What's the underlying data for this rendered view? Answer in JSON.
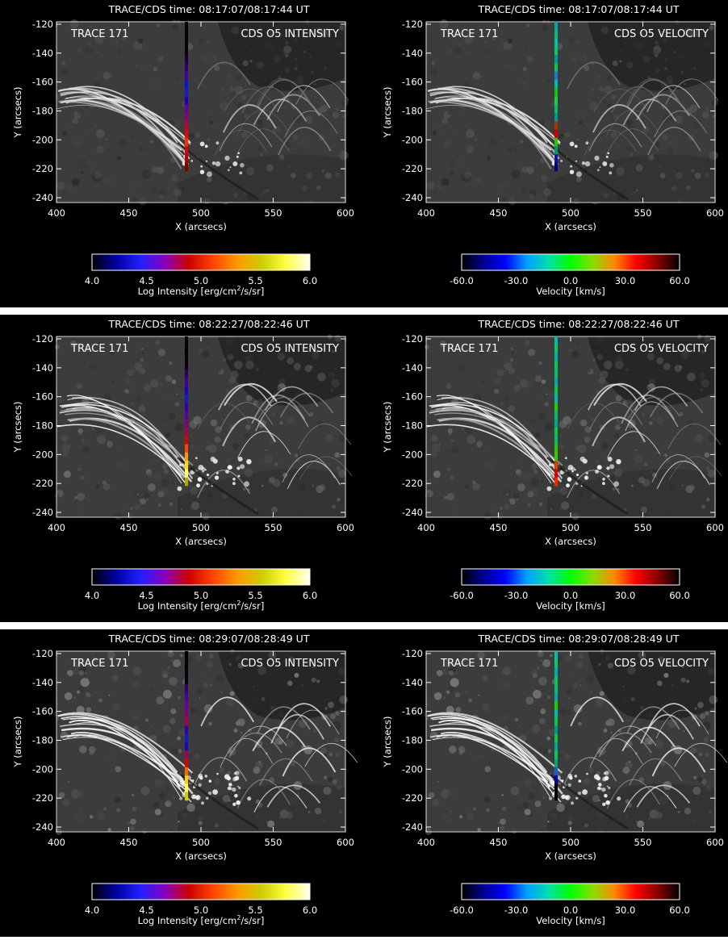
{
  "rows": [
    {
      "time_text": "TRACE/CDS time:  08:17:07/08:17:44 UT",
      "left_label": "TRACE 171",
      "right_labels": [
        "CDS O5 INTENSITY",
        "CDS O5 VELOCITY"
      ],
      "intensity_slit": [
        "#000000",
        "#000000",
        "#050505",
        "#0a0015",
        "#1a0040",
        "#300070",
        "#4400a0",
        "#1010d0",
        "#1a1acc",
        "#2000c0",
        "#6a00a0",
        "#900070",
        "#c00030",
        "#ee0000",
        "#ff2a00",
        "#dd0000",
        "#bb0000",
        "#800000"
      ],
      "velocity_slit": [
        "#00a8a8",
        "#00c070",
        "#00c0b0",
        "#00cc66",
        "#009999",
        "#00cc55",
        "#1a7acc",
        "#00bbaa",
        "#00cc00",
        "#22cc44",
        "#00c060",
        "#009999",
        "#aa3300",
        "#cc0000",
        "#22cc00",
        "#009966",
        "#1010aa",
        "#000080"
      ]
    },
    {
      "time_text": "TRACE/CDS time:  08:22:27/08:22:46 UT",
      "left_label": "TRACE 171",
      "right_labels": [
        "CDS O5 INTENSITY",
        "CDS O5 VELOCITY"
      ],
      "intensity_slit": [
        "#000000",
        "#000000",
        "#050505",
        "#0a0015",
        "#2a0060",
        "#4000a0",
        "#2000c0",
        "#1a1acc",
        "#3000b0",
        "#5a00a0",
        "#800080",
        "#aa0050",
        "#dd0000",
        "#ff4400",
        "#ff9900",
        "#ffdd00",
        "#ffff66",
        "#aaaa00"
      ],
      "velocity_slit": [
        "#00c0a0",
        "#00cc66",
        "#00b0b0",
        "#00cc55",
        "#00c070",
        "#00aaaa",
        "#00cc44",
        "#00bbaa",
        "#22cc00",
        "#00c060",
        "#00aa88",
        "#00cc44",
        "#00c060",
        "#22cc00",
        "#33cc00",
        "#cc4400",
        "#dd0000",
        "#ff2200"
      ]
    },
    {
      "time_text": "TRACE/CDS time:  08:29:07/08:28:49 UT",
      "left_label": "TRACE 171",
      "right_labels": [
        "CDS O5 INTENSITY",
        "CDS O5 VELOCITY"
      ],
      "intensity_slit": [
        "#000000",
        "#000000",
        "#050505",
        "#0a0015",
        "#300070",
        "#4a00a0",
        "#6a00a0",
        "#800080",
        "#aa0050",
        "#3000b0",
        "#1a1acc",
        "#2000c0",
        "#aa0050",
        "#dd0000",
        "#ff6600",
        "#ffcc00",
        "#ffff55",
        "#cccc00"
      ],
      "velocity_slit": [
        "#00c0a0",
        "#00cc66",
        "#00aaaa",
        "#00cc55",
        "#00c070",
        "#00aaaa",
        "#22cc00",
        "#00bbaa",
        "#00cc44",
        "#009988",
        "#00cc44",
        "#00aa88",
        "#00cc55",
        "#00aa66",
        "#1a5acc",
        "#0000aa",
        "#000000",
        "#000000"
      ]
    }
  ],
  "axes": {
    "xlabel": "X (arcsecs)",
    "ylabel": "Y (arcsecs)",
    "xticks": [
      "400",
      "450",
      "500",
      "550",
      "600"
    ],
    "yticks": [
      "-120",
      "-140",
      "-160",
      "-180",
      "-200",
      "-220",
      "-240"
    ]
  },
  "colorbars": {
    "intensity": {
      "ticks": [
        "4.0",
        "4.5",
        "5.0",
        "5.5",
        "6.0"
      ],
      "label_main": "Log Intensity [erg/cm",
      "label_sup": "2",
      "label_end": "/s/sr]",
      "stops": [
        "#000000",
        "#0000a0",
        "#2020ff",
        "#8800c0",
        "#cc0000",
        "#ff4400",
        "#ff9900",
        "#cccc00",
        "#ffff44",
        "#ffffee"
      ]
    },
    "velocity": {
      "ticks": [
        "-60.0",
        "-30.0",
        "0.0",
        "30.0",
        "60.0"
      ],
      "label": "Velocity [km/s]",
      "stops": [
        "#000000",
        "#000090",
        "#0000ff",
        "#00a0ff",
        "#00e0aa",
        "#00ff00",
        "#88dd00",
        "#ff8800",
        "#ff0000",
        "#880000",
        "#000000"
      ]
    }
  }
}
